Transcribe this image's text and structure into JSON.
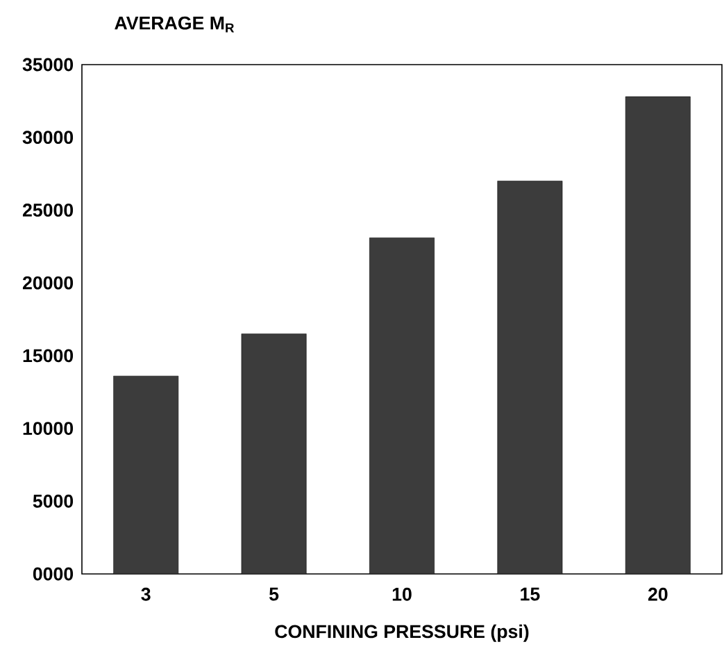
{
  "chart_data": {
    "type": "bar",
    "xlabel": "CONFINING PRESSURE (psi)",
    "ylabel": "AVERAGE M$_{R}$",
    "categories": [
      "3",
      "5",
      "10",
      "15",
      "20"
    ],
    "values": [
      13600,
      16500,
      23100,
      27000,
      32800
    ],
    "color": "#3c3c3c",
    "ylim": [
      0,
      35000
    ],
    "yticks": [
      {
        "value": 0,
        "label": "0000"
      },
      5000,
      10000,
      15000,
      20000,
      25000,
      30000,
      35000
    ]
  }
}
